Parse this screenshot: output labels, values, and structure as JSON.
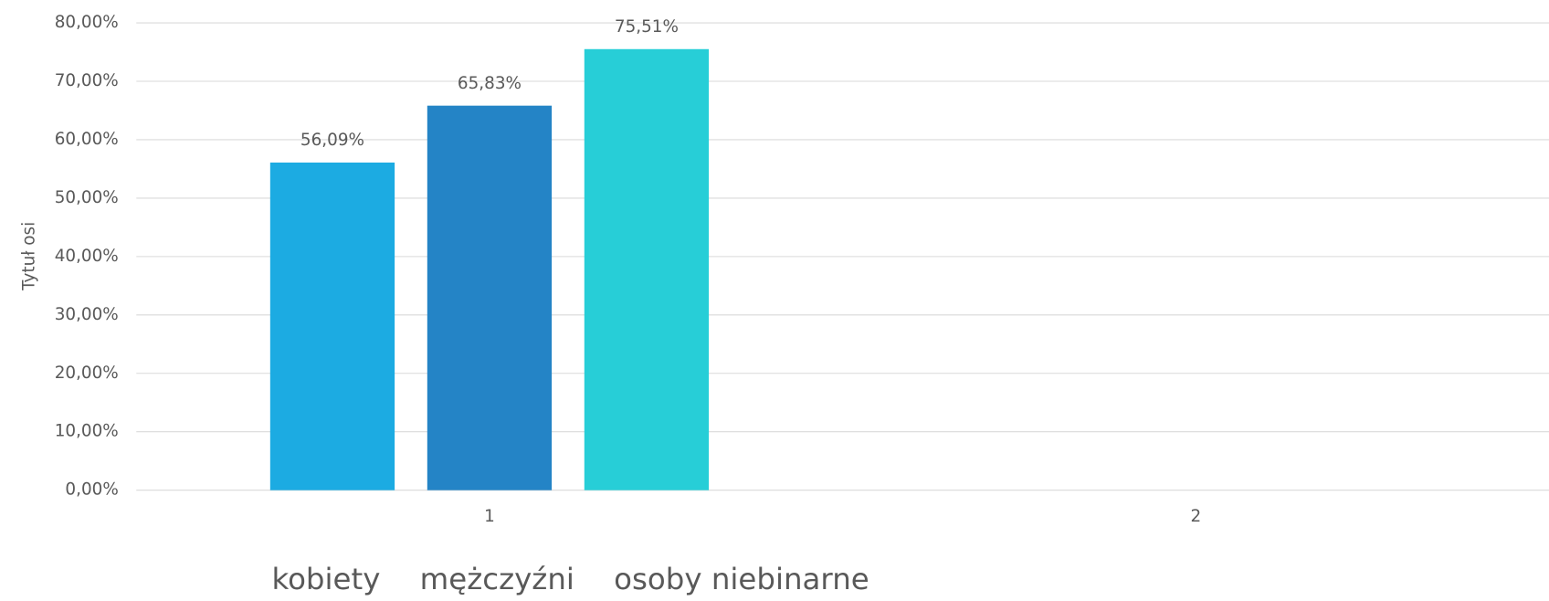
{
  "chart_data": {
    "type": "bar",
    "y_axis_label": "Tytuł osi",
    "categories": [
      "1",
      "2"
    ],
    "series": [
      {
        "name": "kobiety",
        "color": "#1cabe2",
        "values": [
          56.09,
          null
        ],
        "value_labels": [
          "56,09%",
          null
        ]
      },
      {
        "name": "mężczyźni",
        "color": "#2484c6",
        "values": [
          65.83,
          null
        ],
        "value_labels": [
          "65,83%",
          null
        ]
      },
      {
        "name": "osoby niebinarne",
        "color": "#27ced7",
        "values": [
          75.51,
          null
        ],
        "value_labels": [
          "75,51%",
          null
        ]
      }
    ],
    "ylim": [
      0,
      80
    ],
    "yticks": [
      {
        "value": 0,
        "label": "0,00%"
      },
      {
        "value": 10,
        "label": "10,00%"
      },
      {
        "value": 20,
        "label": "20,00%"
      },
      {
        "value": 30,
        "label": "30,00%"
      },
      {
        "value": 40,
        "label": "40,00%"
      },
      {
        "value": 50,
        "label": "50,00%"
      },
      {
        "value": 60,
        "label": "60,00%"
      },
      {
        "value": 70,
        "label": "70,00%"
      },
      {
        "value": 80,
        "label": "80,00%"
      }
    ],
    "grid": true,
    "legend": "bottom"
  }
}
